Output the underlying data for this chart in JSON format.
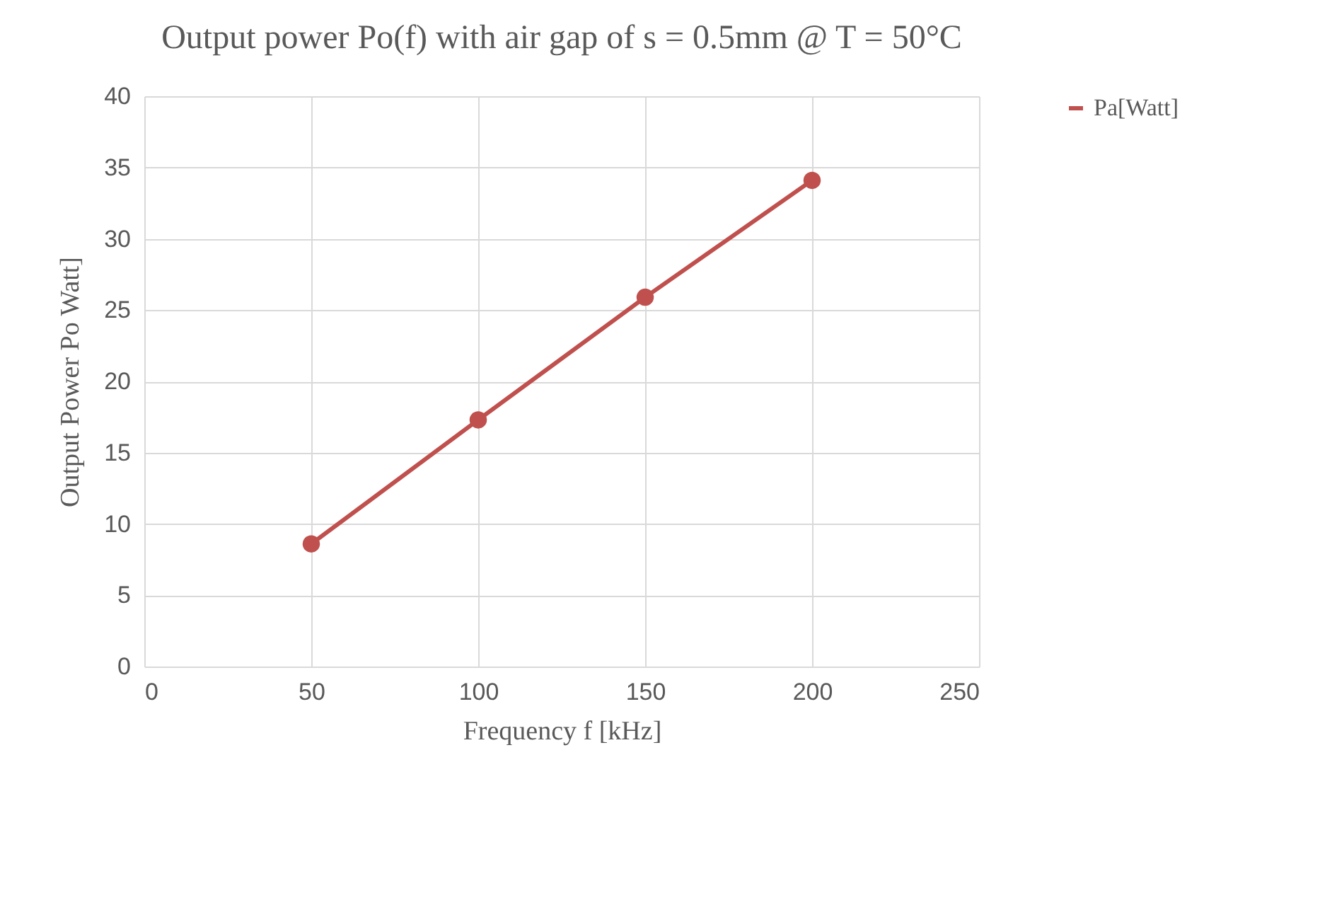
{
  "chart_data": {
    "type": "line",
    "title": "Output power Po(f) with air gap of s = 0.5mm @ T = 50°C",
    "xlabel": "Frequency f [kHz]",
    "ylabel": "Output Power Po Watt]",
    "x": [
      50,
      100,
      150,
      200
    ],
    "series": [
      {
        "name": "Pa[Watt]",
        "color": "#c0504d",
        "values": [
          8.6,
          17.3,
          25.9,
          34.1
        ]
      }
    ],
    "xlim": [
      0,
      250
    ],
    "xticks": [
      0,
      50,
      100,
      150,
      200,
      250
    ],
    "ylim": [
      0,
      40
    ],
    "yticks": [
      0,
      5,
      10,
      15,
      20,
      25,
      30,
      35,
      40
    ],
    "grid": true,
    "legend": "right",
    "marker": "circle",
    "line_style": "solid"
  }
}
